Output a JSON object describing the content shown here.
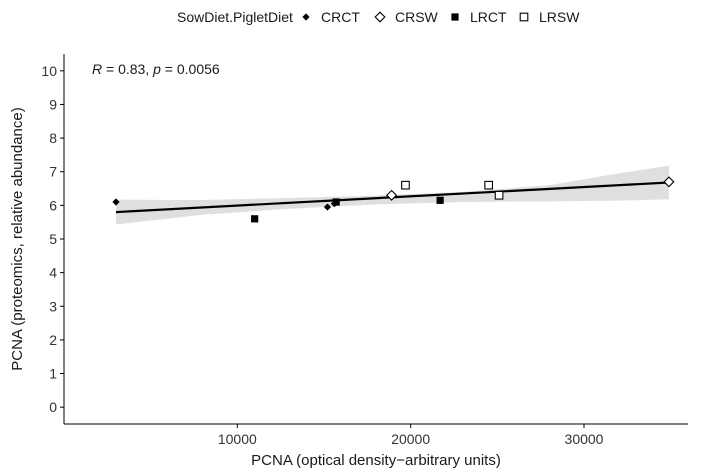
{
  "chart_data": {
    "type": "scatter",
    "title": "",
    "xlabel": "PCNA (optical density−arbitrary units)",
    "ylabel": "PCNA (proteomics, relative abundance)",
    "xlim": [
      0,
      36000
    ],
    "ylim": [
      -0.5,
      10.5
    ],
    "x_ticks": [
      10000,
      20000,
      30000
    ],
    "x_tick_labels": [
      "10000",
      "20000",
      "30000"
    ],
    "y_ticks": [
      0,
      1,
      2,
      3,
      4,
      5,
      6,
      7,
      8,
      9,
      10
    ],
    "y_tick_labels": [
      "0",
      "1",
      "2",
      "3",
      "4",
      "5",
      "6",
      "7",
      "8",
      "9",
      "10"
    ],
    "grid": false,
    "legend": {
      "title": "SowDiet.PigletDiet",
      "position": "top",
      "entries": [
        {
          "label": "CRCT",
          "shape": "small-filled-diamond"
        },
        {
          "label": "CRSW",
          "shape": "open-diamond"
        },
        {
          "label": "LRCT",
          "shape": "filled-square"
        },
        {
          "label": "LRSW",
          "shape": "open-square"
        }
      ]
    },
    "annotation": {
      "r_label": "R",
      "r_value": " = 0.83, ",
      "p_label": "p",
      "p_value": " = 0.0056"
    },
    "series": [
      {
        "name": "CRCT",
        "shape": "small-filled-diamond",
        "points": [
          [
            3000,
            6.1
          ],
          [
            15200,
            5.95
          ],
          [
            15600,
            6.05
          ]
        ]
      },
      {
        "name": "CRSW",
        "shape": "open-diamond",
        "points": [
          [
            18900,
            6.3
          ],
          [
            34900,
            6.7
          ]
        ]
      },
      {
        "name": "LRCT",
        "shape": "filled-square",
        "points": [
          [
            11000,
            5.6
          ],
          [
            15700,
            6.1
          ],
          [
            21700,
            6.15
          ]
        ]
      },
      {
        "name": "LRSW",
        "shape": "open-square",
        "points": [
          [
            19700,
            6.6
          ],
          [
            24500,
            6.6
          ],
          [
            25100,
            6.3
          ]
        ]
      }
    ],
    "regression": {
      "x0": 3000,
      "y0": 5.8,
      "x1": 34900,
      "y1": 6.68
    },
    "confidence_band": {
      "x": [
        3000,
        8000,
        13000,
        18000,
        23000,
        28000,
        32000,
        34900
      ],
      "lower": [
        5.43,
        5.72,
        5.9,
        6.03,
        6.1,
        6.12,
        6.14,
        6.18
      ],
      "upper": [
        6.17,
        6.16,
        6.22,
        6.29,
        6.4,
        6.6,
        6.95,
        7.18
      ]
    },
    "colors": {
      "ink": "#000000",
      "band": "#d9d9d9",
      "axis": "#000000"
    }
  }
}
